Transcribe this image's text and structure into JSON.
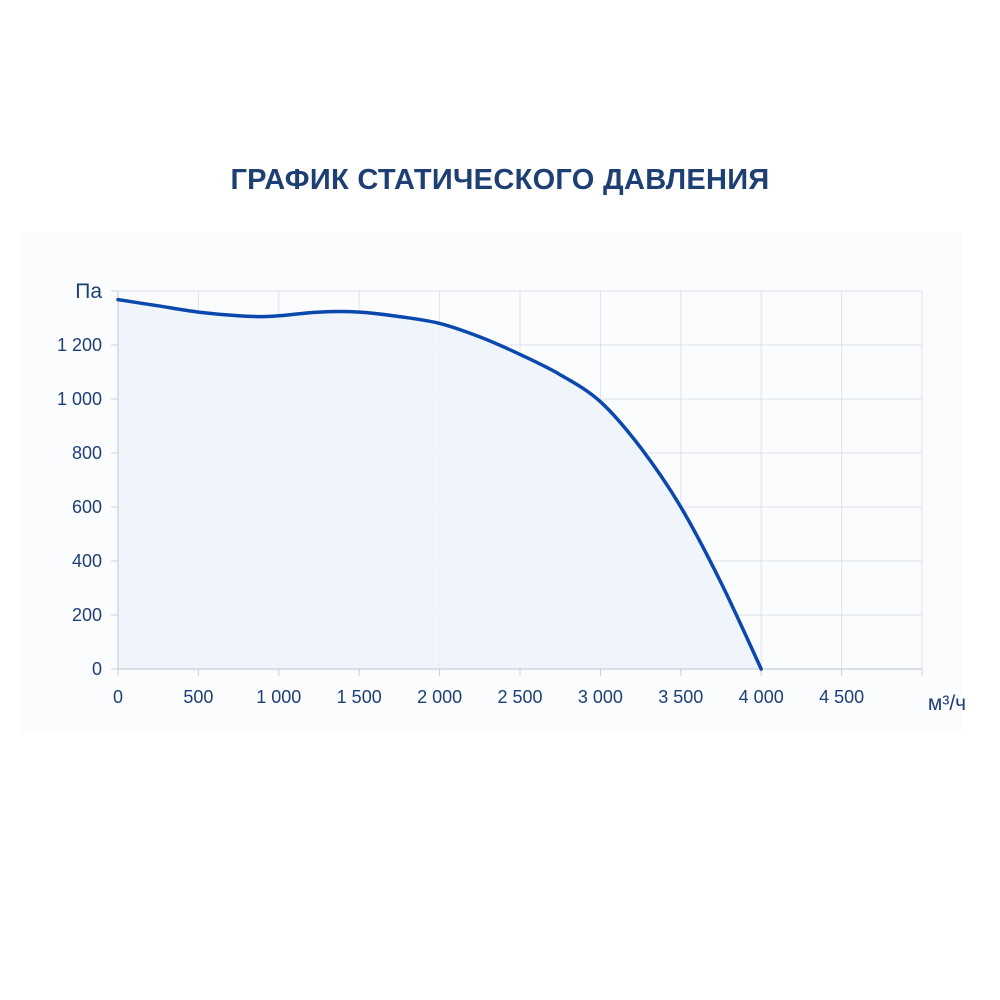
{
  "chart_data": {
    "type": "area",
    "title": "ГРАФИК СТАТИЧЕСКОГО ДАВЛЕНИЯ",
    "ylabel": "Па",
    "xlabel": "м³/ч",
    "xlim": [
      0,
      5000
    ],
    "ylim": [
      0,
      1400
    ],
    "x_ticks": [
      0,
      500,
      1000,
      1500,
      2000,
      2500,
      3000,
      3500,
      4000,
      4500
    ],
    "x_tick_labels": [
      "0",
      "500",
      "1 000",
      "1 500",
      "2 000",
      "2 500",
      "3 000",
      "3 500",
      "4 000",
      "4 500"
    ],
    "y_ticks": [
      0,
      200,
      400,
      600,
      800,
      1000,
      1200
    ],
    "y_tick_labels": [
      "0",
      "200",
      "400",
      "600",
      "800",
      "1 000",
      "1 200"
    ],
    "grid": true,
    "colors": {
      "line": "#0a48ad",
      "fill": "#eef3fb",
      "grid": "#dde3ec",
      "text": "#1e3f73"
    },
    "series": [
      {
        "x": [
          0,
          250,
          500,
          750,
          900,
          1000,
          1250,
          1500,
          1750,
          2000,
          2250,
          2500,
          2750,
          3000,
          3250,
          3500,
          3750,
          4000
        ],
        "y": [
          1368,
          1345,
          1322,
          1308,
          1305,
          1308,
          1322,
          1322,
          1305,
          1280,
          1230,
          1165,
          1090,
          990,
          820,
          600,
          320,
          0
        ]
      }
    ]
  }
}
